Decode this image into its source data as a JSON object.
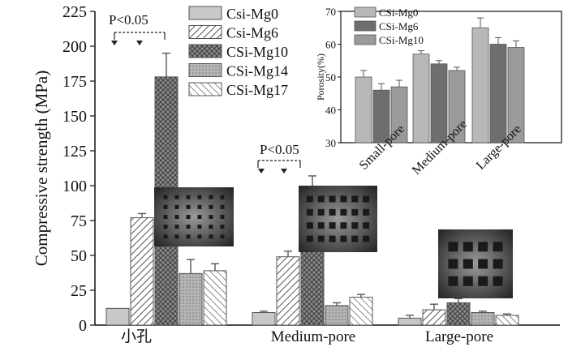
{
  "chart_data": [
    {
      "type": "bar",
      "ylabel": "Compressive strength (MPa)",
      "ylim": [
        0,
        225
      ],
      "yticks": [
        0,
        25,
        50,
        75,
        100,
        125,
        150,
        175,
        200,
        225
      ],
      "categories": [
        "小孔",
        "Medium-pore",
        "Large-pore"
      ],
      "legend_position": "top-center",
      "series": [
        {
          "name": "Csi-Mg0",
          "values": [
            12,
            9,
            5
          ],
          "errors": [
            0,
            1,
            2
          ],
          "fill": "#c8c8c8",
          "pattern": "solid"
        },
        {
          "name": "Csi-Mg6",
          "values": [
            77,
            49,
            11
          ],
          "errors": [
            3,
            4,
            4
          ],
          "fill": "#ffffff",
          "pattern": "hatch-forward"
        },
        {
          "name": "CSi-Mg10",
          "values": [
            178,
            98,
            16
          ],
          "errors": [
            17,
            9,
            3
          ],
          "fill": "#8c8c8c",
          "pattern": "crosshatch"
        },
        {
          "name": "CSi-Mg14",
          "values": [
            37,
            14,
            9
          ],
          "errors": [
            10,
            2,
            1
          ],
          "fill": "#b4b4b4",
          "pattern": "dots"
        },
        {
          "name": "CSi-Mg17",
          "values": [
            39,
            20,
            7
          ],
          "errors": [
            5,
            2,
            1
          ],
          "fill": "#ffffff",
          "pattern": "hatch-back"
        }
      ],
      "annotations": [
        "P<0.05",
        "P<0.05"
      ]
    },
    {
      "type": "bar",
      "ylabel": "Porosity(%)",
      "ylim": [
        30,
        70
      ],
      "yticks": [
        30,
        40,
        50,
        60,
        70
      ],
      "categories": [
        "Small-pore",
        "Medium-pore",
        "Large-pore"
      ],
      "legend_position": "top-left",
      "series": [
        {
          "name": "CSi-Mg0",
          "values": [
            50,
            57,
            65
          ],
          "errors": [
            2,
            1,
            3
          ],
          "fill": "#b8b8b8"
        },
        {
          "name": "CSi-Mg6",
          "values": [
            46,
            54,
            60
          ],
          "errors": [
            2,
            1,
            2
          ],
          "fill": "#6e6e6e"
        },
        {
          "name": "CSi-Mg10",
          "values": [
            47,
            52,
            59
          ],
          "errors": [
            2,
            1,
            2
          ],
          "fill": "#9a9a9a"
        }
      ]
    }
  ]
}
